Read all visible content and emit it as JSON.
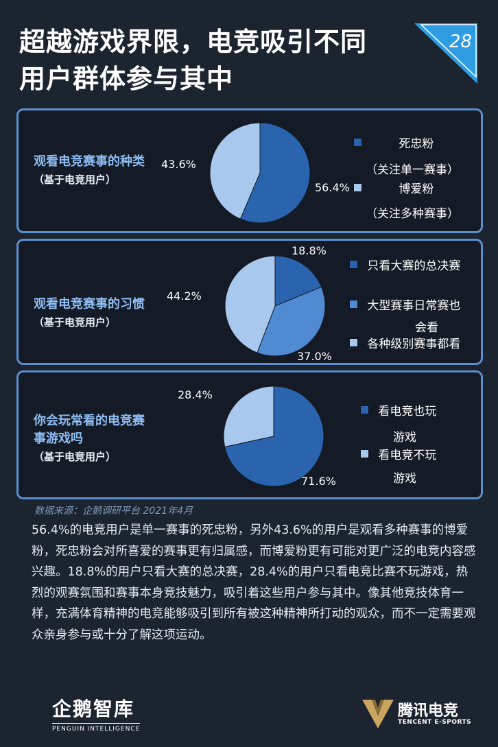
{
  "header": {
    "title_line1": "超越游戏界限，电竞吸引不同",
    "title_line2": "用户群体参与其中",
    "page_number": "28"
  },
  "colors": {
    "dark_blue": "#2a64ae",
    "mid_blue": "#4f8ad3",
    "light_blue": "#a9c8ee",
    "accent": "#2f9be0"
  },
  "chart_data": [
    {
      "type": "pie",
      "title": "观看电竞赛事的种类",
      "subtitle": "（基于电竞用户）",
      "categories": [
        "死忠粉",
        "博爱粉"
      ],
      "category_notes": [
        "（关注单一赛事）",
        "（关注多种赛事）"
      ],
      "values": [
        56.4,
        43.6
      ],
      "value_labels": [
        "56.4%",
        "43.6%"
      ],
      "colors": [
        "#2a64ae",
        "#a9c8ee"
      ],
      "legend": "right"
    },
    {
      "type": "pie",
      "title": "观看电竞赛事的习惯",
      "subtitle": "（基于电竞用户）",
      "categories": [
        "只看大赛的总决赛",
        "大型赛事日常赛也会看",
        "各种级别赛事都看"
      ],
      "legend_lines": [
        [
          "只看大赛的总决赛"
        ],
        [
          "大型赛事日常赛也",
          "会看"
        ],
        [
          "各种级别赛事都看"
        ]
      ],
      "values": [
        18.8,
        37.0,
        44.2
      ],
      "value_labels": [
        "18.8%",
        "37.0%",
        "44.2%"
      ],
      "colors": [
        "#2a64ae",
        "#4f8ad3",
        "#a9c8ee"
      ],
      "legend": "right"
    },
    {
      "type": "pie",
      "title": "你会玩常看的电竞赛事游戏吗",
      "title_lines": [
        "你会玩常看的电竞赛",
        "事游戏吗"
      ],
      "subtitle": "（基于电竞用户）",
      "categories": [
        "看电竞也玩游戏",
        "看电竞不玩游戏"
      ],
      "legend_lines": [
        [
          "看电竞也玩",
          "游戏"
        ],
        [
          "看电竞不玩",
          "游戏"
        ]
      ],
      "values": [
        71.6,
        28.4
      ],
      "value_labels": [
        "71.6%",
        "28.4%"
      ],
      "colors": [
        "#2a64ae",
        "#a9c8ee"
      ],
      "legend": "right"
    }
  ],
  "source": "数据来源：企鹅调研平台 2021年4月",
  "body_text": "56.4%的电竞用户是单一赛事的死忠粉，另外43.6%的用户是观看多种赛事的博爱粉，死忠粉会对所喜爱的赛事更有归属感，而博爱粉更有可能对更广泛的电竞内容感兴趣。18.8%的用户只看大赛的总决赛，28.4%的用户只看电竞比赛不玩游戏，热烈的观赛氛围和赛事本身竞技魅力，吸引着这些用户参与其中。像其他竞技体育一样，充满体育精神的电竞能够吸引到所有被这种精神所打动的观众，而不一定需要观众亲身参与或十分了解这项运动。",
  "footer": {
    "left_logo_cn": "企鹅智库",
    "left_logo_en": "PENGUIN INTELLIGENCE",
    "right_logo_cn": "腾讯电竞",
    "right_logo_en": "TENCENT E-SPORTS"
  }
}
